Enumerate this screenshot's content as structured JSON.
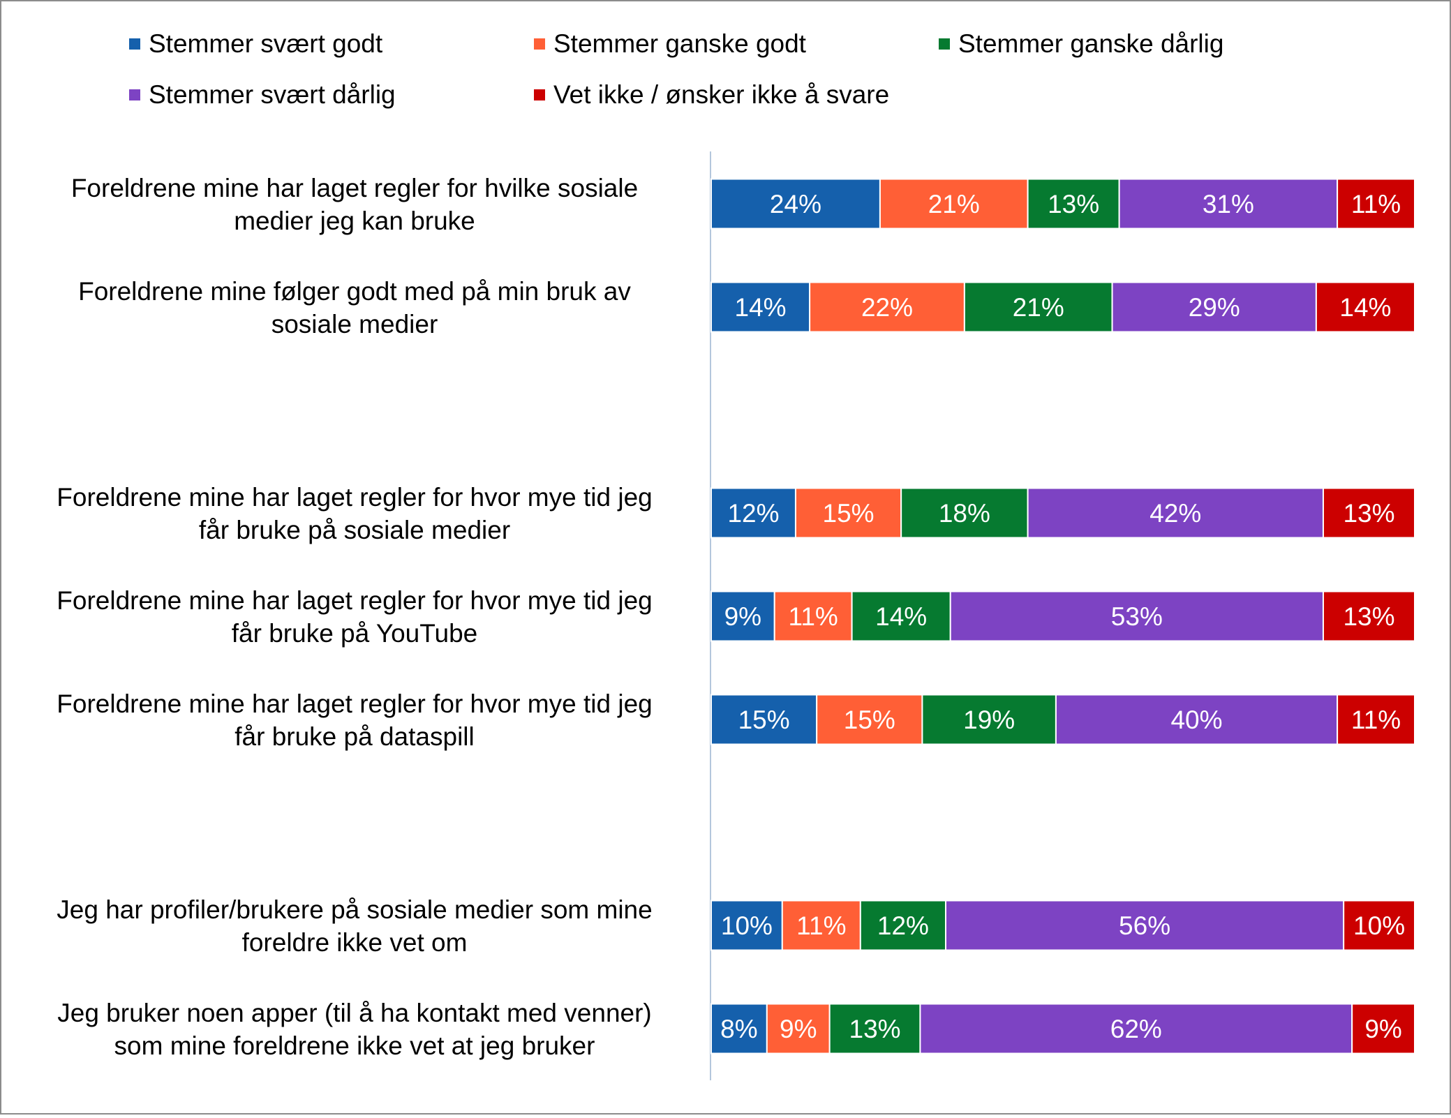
{
  "chart_data": {
    "type": "bar",
    "stacked": true,
    "orientation": "horizontal",
    "percent_scale": true,
    "legend_position": "top",
    "grid": false,
    "title": "",
    "xlabel": "",
    "ylabel": "",
    "series": [
      {
        "name": "Stemmer svært godt",
        "color": "#1560ac",
        "values": [
          24,
          14,
          12,
          9,
          15,
          10,
          8
        ]
      },
      {
        "name": "Stemmer ganske godt",
        "color": "#ff5f36",
        "values": [
          21,
          22,
          15,
          11,
          15,
          11,
          9
        ]
      },
      {
        "name": "Stemmer ganske dårlig",
        "color": "#067a30",
        "values": [
          13,
          21,
          18,
          14,
          19,
          12,
          13
        ]
      },
      {
        "name": "Stemmer svært dårlig",
        "color": "#7d43c3",
        "values": [
          31,
          29,
          42,
          53,
          40,
          56,
          62
        ]
      },
      {
        "name": "Vet ikke / ønsker ikke å svare",
        "color": "#cc0000",
        "values": [
          11,
          14,
          13,
          13,
          11,
          10,
          9
        ]
      }
    ],
    "categories": [
      "Foreldrene mine har laget regler for hvilke sosiale medier jeg kan bruke",
      "Foreldrene mine følger godt med på min bruk av sosiale medier",
      "Foreldrene mine har laget regler for hvor mye tid jeg får bruke på sosiale medier",
      "Foreldrene mine har laget regler for hvor mye tid jeg får bruke på YouTube",
      "Foreldrene mine har laget regler for hvor mye tid jeg får bruke på dataspill",
      "Jeg har profiler/brukere på sosiale medier som mine foreldre ikke vet om",
      "Jeg bruker noen apper (til å ha kontakt med venner) som mine foreldrene ikke vet at jeg bruker"
    ],
    "category_lines": [
      [
        "Foreldrene mine har laget regler for hvilke sosiale",
        "medier jeg kan bruke"
      ],
      [
        "Foreldrene mine følger godt med på min bruk av",
        "sosiale medier"
      ],
      [
        "Foreldrene mine har laget regler for hvor mye tid jeg",
        "får bruke på sosiale medier"
      ],
      [
        "Foreldrene mine har laget regler for hvor mye tid jeg",
        "får bruke på YouTube"
      ],
      [
        "Foreldrene mine har laget regler for hvor mye tid jeg",
        "får bruke på dataspill"
      ],
      [
        "Jeg har profiler/brukere på sosiale medier som mine",
        "foreldre ikke vet om"
      ],
      [
        "Jeg bruker noen apper (til å ha kontakt med venner)",
        "som mine foreldrene ikke vet at jeg bruker"
      ]
    ],
    "value_suffix": "%"
  }
}
